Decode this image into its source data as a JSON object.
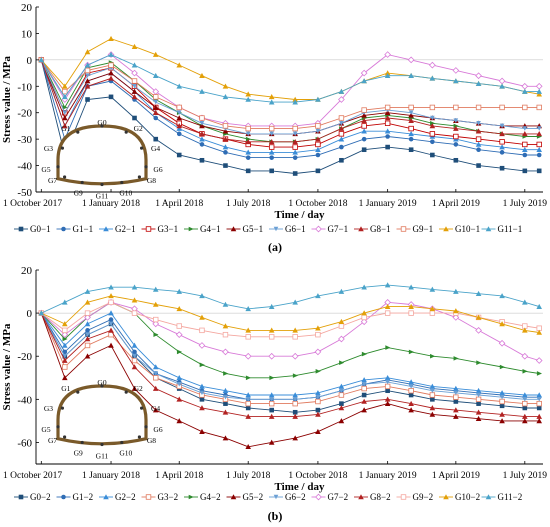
{
  "chart_data": [
    {
      "type": "line",
      "panel_label": "(a)",
      "xlabel": "Time / day",
      "ylabel": "Stress value / MPa",
      "ylim": [
        -50,
        20
      ],
      "yticks": [
        20,
        10,
        0,
        -10,
        -20,
        -30,
        -40,
        -50
      ],
      "x_tick_labels": [
        "1 October 2017",
        "1 January 2018",
        "1 April 2018",
        "1 July 2018",
        "1 October 2018",
        "1 January 2019",
        "1 April 2019",
        "1 July 2019"
      ],
      "x_tick_dates": [
        "2017-10-01",
        "2018-01-01",
        "2018-04-01",
        "2018-07-01",
        "2018-10-01",
        "2019-01-01",
        "2019-04-01",
        "2019-07-01"
      ],
      "xlim": [
        "2017-09-24",
        "2019-07-25"
      ],
      "x": [
        "2017-10-01",
        "2017-11-01",
        "2017-12-01",
        "2018-01-01",
        "2018-02-01",
        "2018-03-01",
        "2018-04-01",
        "2018-05-01",
        "2018-06-01",
        "2018-07-01",
        "2018-08-01",
        "2018-09-01",
        "2018-10-01",
        "2018-11-01",
        "2018-12-01",
        "2019-01-01",
        "2019-02-01",
        "2019-03-01",
        "2019-04-01",
        "2019-05-01",
        "2019-06-01",
        "2019-07-01",
        "2019-07-20"
      ],
      "series": [
        {
          "name": "G0−1",
          "color": "#1f4e79",
          "values": [
            0,
            -36,
            -15,
            -14,
            -22,
            -30,
            -36,
            -38,
            -40,
            -42,
            -42,
            -43,
            -42,
            -38,
            -34,
            -33,
            -34,
            -36,
            -38,
            -40,
            -41,
            -42,
            -42
          ]
        },
        {
          "name": "G1−1",
          "color": "#2f6db5",
          "values": [
            0,
            -30,
            -10,
            -8,
            -15,
            -22,
            -28,
            -32,
            -35,
            -37,
            -37,
            -37,
            -36,
            -33,
            -30,
            -29,
            -30,
            -31,
            -32,
            -34,
            -35,
            -36,
            -36
          ]
        },
        {
          "name": "G2−1",
          "color": "#3a8dd8",
          "values": [
            0,
            -25,
            -8,
            -5,
            -12,
            -20,
            -26,
            -30,
            -33,
            -35,
            -35,
            -35,
            -34,
            -30,
            -27,
            -27,
            -28,
            -29,
            -30,
            -32,
            -33,
            -34,
            -34
          ]
        },
        {
          "name": "G3−1",
          "color": "#c00000",
          "values": [
            0,
            -20,
            -5,
            -3,
            -10,
            -18,
            -24,
            -28,
            -30,
            -32,
            -33,
            -33,
            -32,
            -28,
            -25,
            -24,
            -26,
            -28,
            -29,
            -30,
            -31,
            -32,
            -32
          ]
        },
        {
          "name": "G4−1",
          "color": "#2e8b2e",
          "values": [
            0,
            -18,
            -3,
            -1,
            -8,
            -15,
            -20,
            -25,
            -28,
            -30,
            -31,
            -31,
            -30,
            -26,
            -22,
            -21,
            -22,
            -24,
            -25,
            -27,
            -28,
            -29,
            -29
          ]
        },
        {
          "name": "G5−1",
          "color": "#8b0000",
          "values": [
            0,
            -22,
            -8,
            -5,
            -12,
            -18,
            -22,
            -25,
            -27,
            -28,
            -28,
            -28,
            -27,
            -24,
            -21,
            -20,
            -21,
            -22,
            -23,
            -24,
            -25,
            -25,
            -25
          ]
        },
        {
          "name": "G6−1",
          "color": "#6a9fd4",
          "values": [
            0,
            -20,
            -6,
            -3,
            -10,
            -16,
            -20,
            -24,
            -26,
            -28,
            -28,
            -28,
            -27,
            -24,
            -20,
            -19,
            -20,
            -22,
            -23,
            -24,
            -25,
            -26,
            -26
          ]
        },
        {
          "name": "G7−1",
          "color": "#d87ad8",
          "values": [
            0,
            -15,
            -2,
            2,
            -5,
            -12,
            -18,
            -22,
            -24,
            -25,
            -25,
            -25,
            -24,
            -15,
            -5,
            2,
            0,
            -2,
            -4,
            -6,
            -8,
            -10,
            -10
          ]
        },
        {
          "name": "G8−1",
          "color": "#b22222",
          "values": [
            0,
            -25,
            -10,
            -7,
            -14,
            -20,
            -25,
            -28,
            -30,
            -31,
            -31,
            -31,
            -30,
            -26,
            -23,
            -22,
            -23,
            -25,
            -26,
            -27,
            -28,
            -28,
            -28
          ]
        },
        {
          "name": "G9−1",
          "color": "#e07a5f",
          "values": [
            0,
            -12,
            -4,
            -2,
            -8,
            -14,
            -18,
            -22,
            -25,
            -26,
            -26,
            -26,
            -25,
            -22,
            -19,
            -18,
            -18,
            -18,
            -18,
            -18,
            -18,
            -18,
            -18
          ]
        },
        {
          "name": "G10−1",
          "color": "#e3a008",
          "values": [
            0,
            -10,
            3,
            8,
            5,
            2,
            -2,
            -6,
            -10,
            -13,
            -14,
            -15,
            -15,
            -12,
            -8,
            -5,
            -6,
            -7,
            -8,
            -9,
            -10,
            -12,
            -13
          ]
        },
        {
          "name": "G11−1",
          "color": "#4aa3c9",
          "values": [
            0,
            -14,
            -2,
            2,
            -2,
            -6,
            -10,
            -12,
            -14,
            -15,
            -16,
            -16,
            -15,
            -12,
            -8,
            -6,
            -6,
            -7,
            -8,
            -9,
            -10,
            -12,
            -12
          ]
        }
      ]
    },
    {
      "type": "line",
      "panel_label": "(b)",
      "xlabel": "Time / day",
      "ylabel": "Stress value / MPa",
      "ylim": [
        -70,
        20
      ],
      "yticks": [
        20,
        0,
        -20,
        -40,
        -60
      ],
      "x_tick_labels": [
        "1 October 2017",
        "1 January 2018",
        "1 April 2018",
        "1 July 2018",
        "1 October 2018",
        "1 January 2019",
        "1 April 2019",
        "1 July 2019"
      ],
      "x_tick_dates": [
        "2017-10-01",
        "2018-01-01",
        "2018-04-01",
        "2018-07-01",
        "2018-10-01",
        "2019-01-01",
        "2019-04-01",
        "2019-07-01"
      ],
      "xlim": [
        "2017-09-24",
        "2019-07-25"
      ],
      "x": [
        "2017-10-01",
        "2017-11-01",
        "2017-12-01",
        "2018-01-01",
        "2018-02-01",
        "2018-03-01",
        "2018-04-01",
        "2018-05-01",
        "2018-06-01",
        "2018-07-01",
        "2018-08-01",
        "2018-09-01",
        "2018-10-01",
        "2018-11-01",
        "2018-12-01",
        "2019-01-01",
        "2019-02-01",
        "2019-03-01",
        "2019-04-01",
        "2019-05-01",
        "2019-06-01",
        "2019-07-01",
        "2019-07-20"
      ],
      "series": [
        {
          "name": "G0−2",
          "color": "#1f4e79",
          "values": [
            0,
            -20,
            -10,
            -5,
            -20,
            -30,
            -35,
            -40,
            -42,
            -44,
            -45,
            -46,
            -45,
            -42,
            -38,
            -36,
            -38,
            -40,
            -41,
            -42,
            -43,
            -44,
            -44
          ]
        },
        {
          "name": "G1−2",
          "color": "#2f6db5",
          "values": [
            0,
            -18,
            -8,
            -3,
            -18,
            -28,
            -32,
            -36,
            -38,
            -40,
            -40,
            -40,
            -39,
            -36,
            -33,
            -31,
            -33,
            -35,
            -36,
            -37,
            -38,
            -39,
            -39
          ]
        },
        {
          "name": "G2−2",
          "color": "#3a8dd8",
          "values": [
            0,
            -15,
            -5,
            0,
            -15,
            -25,
            -30,
            -34,
            -36,
            -38,
            -38,
            -38,
            -37,
            -34,
            -31,
            -30,
            -32,
            -34,
            -35,
            -36,
            -37,
            -38,
            -38
          ]
        },
        {
          "name": "G3−2",
          "color": "#e07a5f",
          "values": [
            0,
            -25,
            -15,
            -10,
            -22,
            -30,
            -34,
            -38,
            -40,
            -42,
            -42,
            -42,
            -41,
            -38,
            -35,
            -34,
            -36,
            -38,
            -39,
            -40,
            -41,
            -42,
            -42
          ]
        },
        {
          "name": "G4−2",
          "color": "#2e8b2e",
          "values": [
            0,
            -12,
            -2,
            5,
            0,
            -10,
            -18,
            -24,
            -28,
            -30,
            -30,
            -29,
            -27,
            -23,
            -19,
            -16,
            -18,
            -20,
            -21,
            -23,
            -25,
            -27,
            -28
          ]
        },
        {
          "name": "G5−2",
          "color": "#8b0000",
          "values": [
            0,
            -30,
            -20,
            -15,
            -35,
            -45,
            -50,
            -55,
            -58,
            -62,
            -60,
            -58,
            -55,
            -50,
            -45,
            -42,
            -45,
            -47,
            -48,
            -49,
            -50,
            -50,
            -50
          ]
        },
        {
          "name": "G6−2",
          "color": "#6a9fd4",
          "values": [
            0,
            -20,
            -10,
            -5,
            -20,
            -28,
            -33,
            -37,
            -39,
            -40,
            -40,
            -40,
            -39,
            -36,
            -33,
            -32,
            -34,
            -36,
            -37,
            -38,
            -39,
            -40,
            -40
          ]
        },
        {
          "name": "G7−2",
          "color": "#d87ad8",
          "values": [
            0,
            -10,
            -2,
            5,
            2,
            -5,
            -10,
            -15,
            -18,
            -20,
            -20,
            -20,
            -18,
            -12,
            -4,
            5,
            4,
            2,
            -2,
            -8,
            -14,
            -20,
            -22
          ]
        },
        {
          "name": "G8−2",
          "color": "#b22222",
          "values": [
            0,
            -22,
            -12,
            -8,
            -25,
            -35,
            -40,
            -44,
            -46,
            -48,
            -48,
            -48,
            -47,
            -44,
            -41,
            -40,
            -42,
            -44,
            -45,
            -46,
            -47,
            -48,
            -48
          ]
        },
        {
          "name": "G9−2",
          "color": "#f4a7a0",
          "values": [
            0,
            -8,
            0,
            5,
            0,
            -3,
            -6,
            -8,
            -10,
            -11,
            -11,
            -11,
            -10,
            -6,
            -2,
            0,
            0,
            0,
            0,
            -2,
            -4,
            -6,
            -7
          ]
        },
        {
          "name": "G10−2",
          "color": "#e3a008",
          "values": [
            0,
            -5,
            5,
            8,
            6,
            4,
            2,
            -2,
            -6,
            -8,
            -8,
            -8,
            -7,
            -4,
            0,
            3,
            3,
            2,
            1,
            -2,
            -5,
            -8,
            -9
          ]
        },
        {
          "name": "G11−2",
          "color": "#4aa3c9",
          "values": [
            0,
            5,
            10,
            12,
            12,
            11,
            10,
            8,
            4,
            2,
            3,
            5,
            8,
            10,
            12,
            13,
            12,
            11,
            10,
            9,
            8,
            5,
            3
          ]
        }
      ]
    }
  ],
  "inset_labels": [
    "G0",
    "G1",
    "G2",
    "G3",
    "G4",
    "G5",
    "G6",
    "G7",
    "G8",
    "G9",
    "G10",
    "G11"
  ]
}
